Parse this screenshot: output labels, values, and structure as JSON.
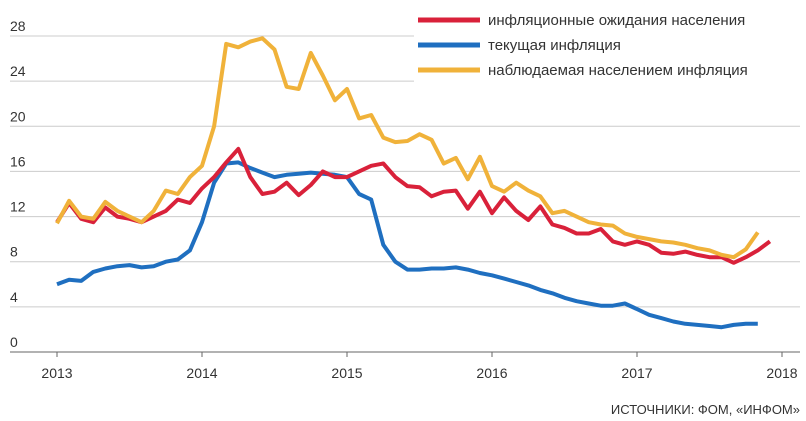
{
  "chart_data": {
    "type": "line",
    "categories": [
      "2013",
      null,
      null,
      null,
      null,
      null,
      null,
      null,
      null,
      null,
      null,
      null,
      "2014",
      null,
      null,
      null,
      null,
      null,
      null,
      null,
      null,
      null,
      null,
      null,
      "2015",
      null,
      null,
      null,
      null,
      null,
      null,
      null,
      null,
      null,
      null,
      null,
      "2016",
      null,
      null,
      null,
      null,
      null,
      null,
      null,
      null,
      null,
      null,
      null,
      "2017",
      null,
      null,
      null,
      null,
      null,
      null,
      null,
      null,
      null,
      null,
      null,
      "2018"
    ],
    "series": [
      {
        "name": "инфляционные ожидания населения",
        "color": "#d9213a",
        "values": [
          11.5,
          13.2,
          11.8,
          11.5,
          12.8,
          12.0,
          11.8,
          11.5,
          12.0,
          12.5,
          13.5,
          13.2,
          14.5,
          15.5,
          16.8,
          18.0,
          15.5,
          14.0,
          14.2,
          15.0,
          13.9,
          14.8,
          16.0,
          15.5,
          15.5,
          16.0,
          16.5,
          16.7,
          15.5,
          14.7,
          14.6,
          13.8,
          14.2,
          14.3,
          12.7,
          14.2,
          12.3,
          13.7,
          12.5,
          11.7,
          12.9,
          11.3,
          11.0,
          10.5,
          10.5,
          10.9,
          9.8,
          9.5,
          9.8,
          9.5,
          8.8,
          8.7,
          8.9,
          8.6,
          8.4,
          8.4,
          7.9,
          8.4,
          9.0,
          9.8,
          null
        ]
      },
      {
        "name": "текущая инфляция",
        "color": "#1f6fc0",
        "values": [
          6.0,
          6.4,
          6.3,
          7.1,
          7.4,
          7.6,
          7.7,
          7.5,
          7.6,
          8.0,
          8.2,
          9.0,
          11.5,
          15.0,
          16.7,
          16.8,
          16.3,
          15.9,
          15.5,
          15.7,
          15.8,
          15.9,
          15.8,
          15.7,
          15.5,
          14.0,
          13.5,
          9.5,
          8.0,
          7.3,
          7.3,
          7.4,
          7.4,
          7.5,
          7.3,
          7.0,
          6.8,
          6.5,
          6.2,
          5.9,
          5.5,
          5.2,
          4.8,
          4.5,
          4.3,
          4.1,
          4.1,
          4.3,
          3.8,
          3.3,
          3.0,
          2.7,
          2.5,
          2.4,
          2.3,
          2.2,
          2.4,
          2.5,
          2.5,
          null,
          null
        ]
      },
      {
        "name": "наблюдаемая населением инфляция",
        "color": "#f0b23a",
        "values": [
          11.4,
          13.4,
          12.0,
          11.8,
          13.3,
          12.5,
          12.0,
          11.5,
          12.5,
          14.3,
          14.0,
          15.5,
          16.5,
          20.0,
          27.3,
          27.0,
          27.5,
          27.8,
          26.8,
          23.5,
          23.3,
          26.5,
          24.5,
          22.3,
          23.3,
          20.7,
          21.0,
          19.0,
          18.6,
          18.7,
          19.3,
          18.8,
          16.7,
          17.2,
          15.3,
          17.3,
          14.7,
          14.2,
          15.0,
          14.3,
          13.8,
          12.3,
          12.5,
          12.0,
          11.5,
          11.3,
          11.2,
          10.5,
          10.2,
          10.0,
          9.8,
          9.7,
          9.5,
          9.2,
          9.0,
          8.6,
          8.4,
          9.1,
          10.6,
          null,
          null
        ]
      }
    ],
    "ylim": [
      0,
      28
    ],
    "yticks": [
      0,
      4,
      8,
      12,
      16,
      20,
      24,
      28
    ],
    "grid": true,
    "legend": "upper right",
    "source": "ИСТОЧНИКИ: ФОМ, «ИНФОМ»"
  }
}
